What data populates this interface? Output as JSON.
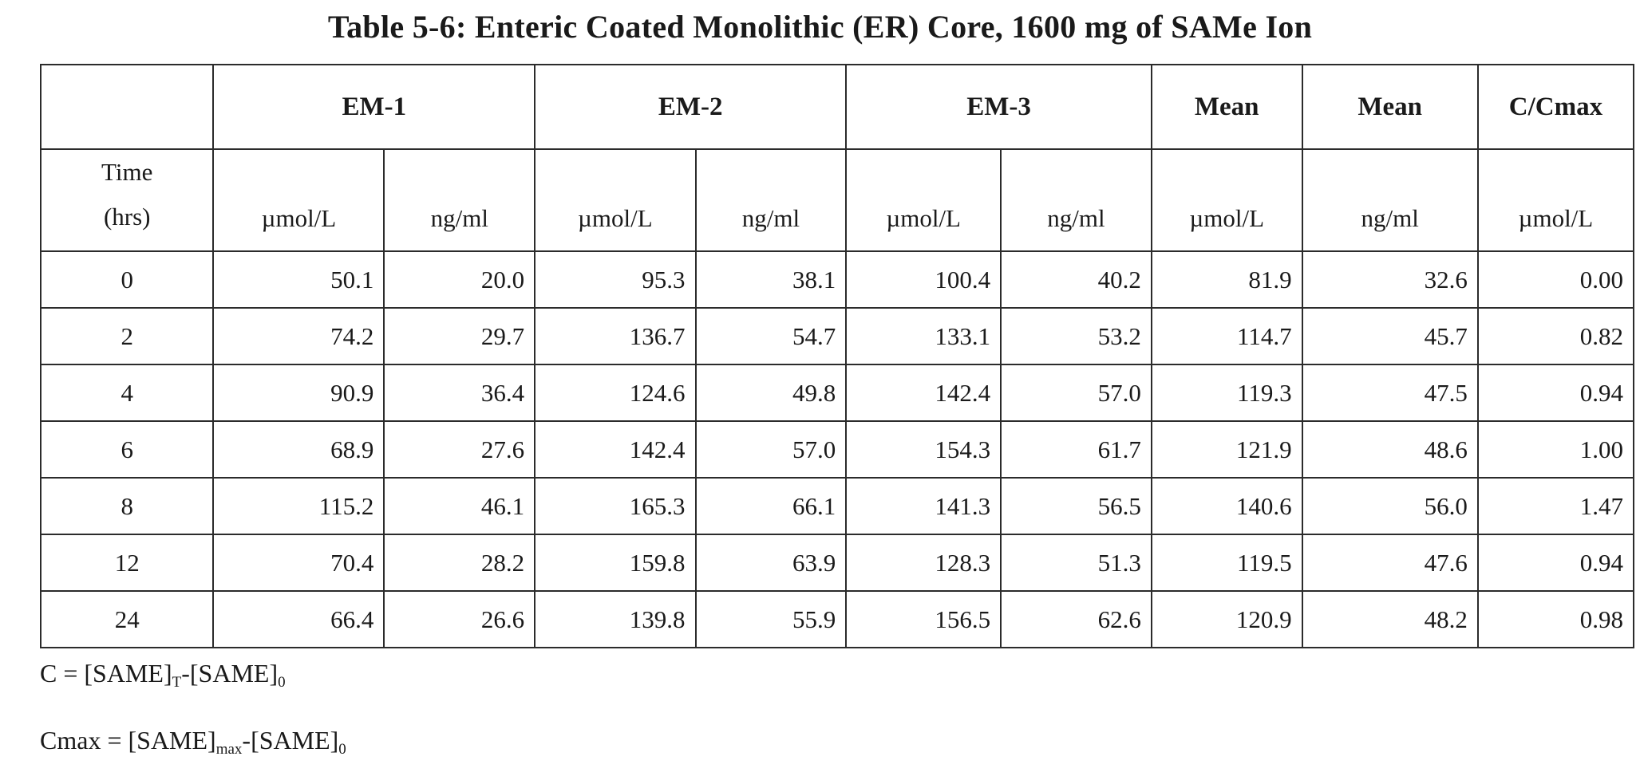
{
  "title": "Table 5-6:  Enteric Coated Monolithic (ER) Core, 1600 mg of SAMe Ion",
  "table": {
    "group_headers": [
      "",
      "EM-1",
      "EM-2",
      "EM-3",
      "Mean",
      "Mean",
      "C/Cmax"
    ],
    "time_header": [
      "Time",
      "(hrs)"
    ],
    "units": [
      "µmol/L",
      "ng/ml",
      "µmol/L",
      "ng/ml",
      "µmol/L",
      "ng/ml",
      "µmol/L",
      "ng/ml",
      "µmol/L"
    ],
    "rows": [
      [
        "0",
        "50.1",
        "20.0",
        "95.3",
        "38.1",
        "100.4",
        "40.2",
        "81.9",
        "32.6",
        "0.00"
      ],
      [
        "2",
        "74.2",
        "29.7",
        "136.7",
        "54.7",
        "133.1",
        "53.2",
        "114.7",
        "45.7",
        "0.82"
      ],
      [
        "4",
        "90.9",
        "36.4",
        "124.6",
        "49.8",
        "142.4",
        "57.0",
        "119.3",
        "47.5",
        "0.94"
      ],
      [
        "6",
        "68.9",
        "27.6",
        "142.4",
        "57.0",
        "154.3",
        "61.7",
        "121.9",
        "48.6",
        "1.00"
      ],
      [
        "8",
        "115.2",
        "46.1",
        "165.3",
        "66.1",
        "141.3",
        "56.5",
        "140.6",
        "56.0",
        "1.47"
      ],
      [
        "12",
        "70.4",
        "28.2",
        "159.8",
        "63.9",
        "128.3",
        "51.3",
        "119.5",
        "47.6",
        "0.94"
      ],
      [
        "24",
        "66.4",
        "26.6",
        "139.8",
        "55.9",
        "156.5",
        "62.6",
        "120.9",
        "48.2",
        "0.98"
      ]
    ]
  },
  "footnotes": {
    "c_def": {
      "lhs": "C = [SAME]",
      "sub1": "T",
      "mid": "-[SAME]",
      "sub2": "0"
    },
    "cmax_def": {
      "lhs": "Cmax = [SAME]",
      "sub1": "max",
      "mid": "-[SAME]",
      "sub2": "0"
    }
  }
}
